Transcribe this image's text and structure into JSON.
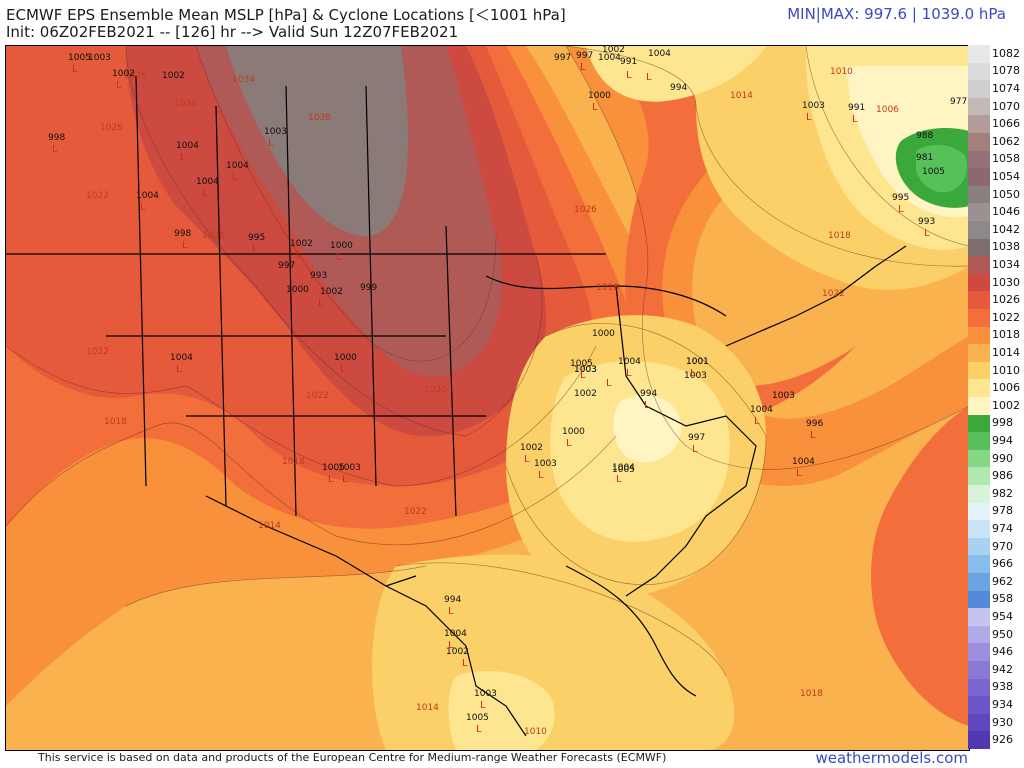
{
  "header": {
    "title": "ECMWF EPS Ensemble Mean MSLP [hPa] & Cyclone Locations [＜1001 hPa]",
    "init": "Init: 06Z02FEB2021 -- [126] hr --> Valid Sun 12Z07FEB2021",
    "minmax": "MIN|MAX: 997.6 | 1039.0 hPa"
  },
  "footer": {
    "disclaimer": "This service is based on data and products of the European Centre for Medium-range Weather Forecasts (ECMWF)",
    "brand": "weathermodels.com"
  },
  "colorbar": [
    {
      "label": "1082",
      "color": "#e8e8e8"
    },
    {
      "label": "1078",
      "color": "#dcdcdc"
    },
    {
      "label": "1074",
      "color": "#cfcfcf"
    },
    {
      "label": "1070",
      "color": "#c2b8b4"
    },
    {
      "label": "1066",
      "color": "#b49c98"
    },
    {
      "label": "1062",
      "color": "#a4807c"
    },
    {
      "label": "1058",
      "color": "#967078"
    },
    {
      "label": "1054",
      "color": "#8a6a70"
    },
    {
      "label": "1050",
      "color": "#8a8080"
    },
    {
      "label": "1046",
      "color": "#9c9090"
    },
    {
      "label": "1042",
      "color": "#8e8888"
    },
    {
      "label": "1038",
      "color": "#7e6e6e"
    },
    {
      "label": "1034",
      "color": "#b05a58"
    },
    {
      "label": "1030",
      "color": "#cc4a40"
    },
    {
      "label": "1026",
      "color": "#e65a3c"
    },
    {
      "label": "1022",
      "color": "#f26e3a"
    },
    {
      "label": "1018",
      "color": "#f8903c"
    },
    {
      "label": "1014",
      "color": "#fab24e"
    },
    {
      "label": "1010",
      "color": "#fcd068"
    },
    {
      "label": "1006",
      "color": "#fee690"
    },
    {
      "label": "1002",
      "color": "#fff4c2"
    },
    {
      "label": "998",
      "color": "#3aa83a"
    },
    {
      "label": "994",
      "color": "#58c058"
    },
    {
      "label": "990",
      "color": "#86d886"
    },
    {
      "label": "986",
      "color": "#b0e8b0"
    },
    {
      "label": "982",
      "color": "#d8f4d8"
    },
    {
      "label": "978",
      "color": "#e4f2fa"
    },
    {
      "label": "974",
      "color": "#c8e4f6"
    },
    {
      "label": "970",
      "color": "#a8d2f0"
    },
    {
      "label": "966",
      "color": "#88bcea"
    },
    {
      "label": "962",
      "color": "#6ca4e2"
    },
    {
      "label": "958",
      "color": "#5488d8"
    },
    {
      "label": "954",
      "color": "#c4c4ee"
    },
    {
      "label": "950",
      "color": "#b0aae6"
    },
    {
      "label": "946",
      "color": "#9c90de"
    },
    {
      "label": "942",
      "color": "#8a7ad6"
    },
    {
      "label": "938",
      "color": "#7a66ce"
    },
    {
      "label": "934",
      "color": "#6c56c6"
    },
    {
      "label": "930",
      "color": "#5e48be"
    },
    {
      "label": "926",
      "color": "#5038b4"
    }
  ],
  "contour_labels": [
    {
      "t": "1034"
    },
    {
      "t": "1030"
    },
    {
      "t": "1030"
    },
    {
      "t": "1026"
    },
    {
      "t": "1026"
    },
    {
      "t": "1026"
    },
    {
      "t": "1026"
    },
    {
      "t": "1022"
    },
    {
      "t": "1022"
    },
    {
      "t": "1022"
    },
    {
      "t": "1022"
    },
    {
      "t": "1022"
    },
    {
      "t": "1018"
    },
    {
      "t": "1018"
    },
    {
      "t": "1018"
    },
    {
      "t": "1018"
    },
    {
      "t": "1014"
    },
    {
      "t": "1014"
    },
    {
      "t": "1010"
    },
    {
      "t": "1010"
    },
    {
      "t": "1006"
    },
    {
      "t": "1038"
    },
    {
      "t": "1018"
    },
    {
      "t": "1014"
    }
  ],
  "pressure_labels": [
    {
      "t": "1005"
    },
    {
      "t": "1003"
    },
    {
      "t": "1002"
    },
    {
      "t": "1002"
    },
    {
      "t": "998"
    },
    {
      "t": "1004"
    },
    {
      "t": "1004"
    },
    {
      "t": "1003"
    },
    {
      "t": "1004"
    },
    {
      "t": "1004"
    },
    {
      "t": "998"
    },
    {
      "t": "995"
    },
    {
      "t": "1002"
    },
    {
      "t": "1000"
    },
    {
      "t": "997"
    },
    {
      "t": "993"
    },
    {
      "t": "1000"
    },
    {
      "t": "1002"
    },
    {
      "t": "999"
    },
    {
      "t": "1004"
    },
    {
      "t": "1000"
    },
    {
      "t": "1005"
    },
    {
      "t": "1003"
    },
    {
      "t": "1005"
    },
    {
      "t": "1004"
    },
    {
      "t": "1002"
    },
    {
      "t": "1003"
    },
    {
      "t": "994"
    },
    {
      "t": "1001"
    },
    {
      "t": "1003"
    },
    {
      "t": "1000"
    },
    {
      "t": "996"
    },
    {
      "t": "1004"
    },
    {
      "t": "997"
    },
    {
      "t": "1002"
    },
    {
      "t": "1004"
    },
    {
      "t": "1003"
    },
    {
      "t": "1001"
    },
    {
      "t": "997"
    },
    {
      "t": "1002"
    },
    {
      "t": "1004"
    },
    {
      "t": "1000"
    },
    {
      "t": "997"
    },
    {
      "t": "1003"
    },
    {
      "t": "1004"
    },
    {
      "t": "994"
    },
    {
      "t": "1000"
    },
    {
      "t": "1003"
    },
    {
      "t": "991"
    },
    {
      "t": "1004"
    },
    {
      "t": "1005"
    },
    {
      "t": "1003"
    },
    {
      "t": "1002"
    },
    {
      "t": "1004"
    },
    {
      "t": "1003"
    },
    {
      "t": "1005"
    },
    {
      "t": "981"
    },
    {
      "t": "988"
    },
    {
      "t": "977"
    },
    {
      "t": "995"
    },
    {
      "t": "993"
    },
    {
      "t": "1005"
    },
    {
      "t": "994"
    },
    {
      "t": "991"
    }
  ]
}
